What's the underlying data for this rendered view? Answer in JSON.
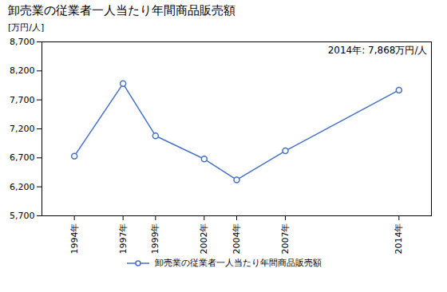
{
  "chart_data": {
    "type": "line",
    "title": "卸売業の従業者一人当たり年間商品販売額",
    "ylabel": "[万円/人]",
    "annotation": "2014年: 7,868万円/人",
    "x": [
      1994,
      1997,
      1999,
      2002,
      2004,
      2007,
      2014
    ],
    "series": [
      {
        "name": "卸売業の従業者一人当たり年間商品販売額",
        "color": "#4472c4",
        "marker": "circle",
        "values": [
          6730,
          7980,
          7080,
          6680,
          6320,
          6820,
          7868
        ]
      }
    ],
    "xlim": [
      1992,
      2016
    ],
    "xticks": [
      {
        "value": 1994,
        "label": "1994年"
      },
      {
        "value": 1997,
        "label": "1997年"
      },
      {
        "value": 1999,
        "label": "1999年"
      },
      {
        "value": 2002,
        "label": "2002年"
      },
      {
        "value": 2004,
        "label": "2004年"
      },
      {
        "value": 2007,
        "label": "2007年"
      },
      {
        "value": 2014,
        "label": "2014年"
      }
    ],
    "ylim": [
      5700,
      8700
    ],
    "yticks": [
      {
        "value": 5700,
        "label": "5,700"
      },
      {
        "value": 6200,
        "label": "6,200"
      },
      {
        "value": 6700,
        "label": "6,700"
      },
      {
        "value": 7200,
        "label": "7,200"
      },
      {
        "value": 7700,
        "label": "7,700"
      },
      {
        "value": 8200,
        "label": "8,200"
      },
      {
        "value": 8700,
        "label": "8,700"
      }
    ],
    "grid": false,
    "legend": "bottom"
  }
}
